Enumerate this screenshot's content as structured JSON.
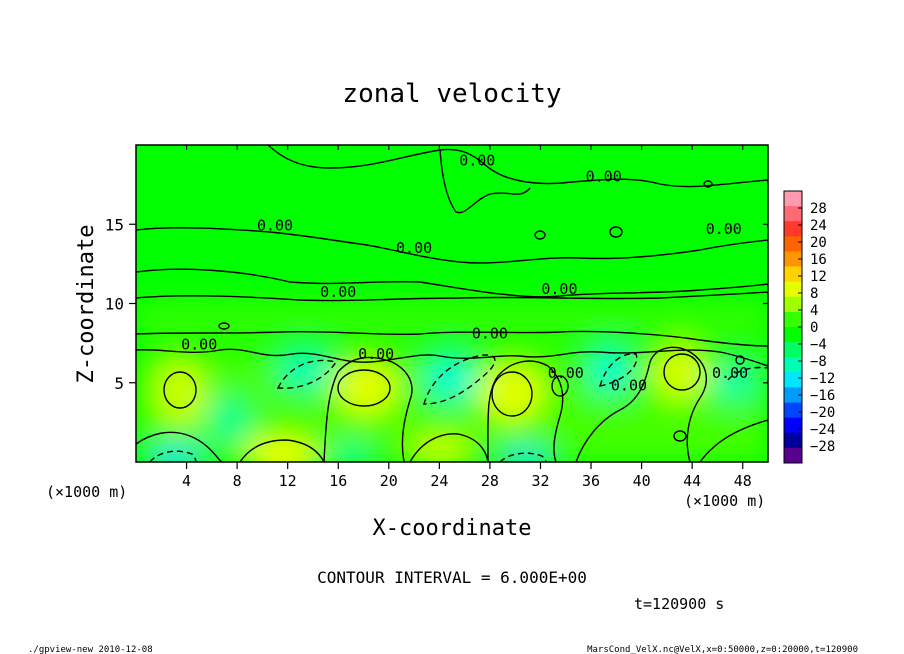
{
  "chart_data": {
    "type": "heatmap",
    "title": "zonal velocity",
    "xlabel": "X-coordinate",
    "ylabel": "Z-coordinate",
    "x_unit_label": "(×1000 m)",
    "y_unit_label": "(×1000 m)",
    "xlim": [
      0,
      50
    ],
    "ylim": [
      0,
      20
    ],
    "x_ticks": [
      4,
      8,
      12,
      16,
      20,
      24,
      28,
      32,
      36,
      40,
      44,
      48
    ],
    "x_tick_labels": [
      "4",
      "8",
      "12",
      "16",
      "20",
      "24",
      "28",
      "32",
      "36",
      "40",
      "44",
      "48"
    ],
    "y_ticks": [
      5,
      10,
      15
    ],
    "y_tick_labels": [
      "5",
      "10",
      "15"
    ],
    "contour_interval_label": "CONTOUR INTERVAL = 6.000E+00",
    "contour_interval": 6,
    "contour_labels": [
      {
        "text": "0.00",
        "x": 27.0,
        "z": 18.7
      },
      {
        "text": "0.00",
        "x": 37.0,
        "z": 17.7
      },
      {
        "text": "0.00",
        "x": 11.0,
        "z": 14.6
      },
      {
        "text": "0.00",
        "x": 22.0,
        "z": 13.2
      },
      {
        "text": "0.00",
        "x": 46.5,
        "z": 14.4
      },
      {
        "text": "0.00",
        "x": 16.0,
        "z": 10.4
      },
      {
        "text": "0.00",
        "x": 33.5,
        "z": 10.6
      },
      {
        "text": "0.00",
        "x": 5.0,
        "z": 7.1
      },
      {
        "text": "0.00",
        "x": 19.0,
        "z": 6.5
      },
      {
        "text": "0.00",
        "x": 28.0,
        "z": 7.8
      },
      {
        "text": "0.00",
        "x": 34.0,
        "z": 5.3
      },
      {
        "text": "0.00",
        "x": 39.0,
        "z": 4.5
      },
      {
        "text": "0.00",
        "x": 47.0,
        "z": 5.3
      }
    ],
    "colorbar": {
      "tick_labels": [
        "28",
        "24",
        "20",
        "16",
        "12",
        "8",
        "4",
        "0",
        "−4",
        "−8",
        "−12",
        "−16",
        "−20",
        "−24",
        "−28"
      ],
      "levels": [
        28,
        24,
        20,
        16,
        12,
        8,
        4,
        0,
        -4,
        -8,
        -12,
        -16,
        -20,
        -24,
        -28
      ],
      "min": -32,
      "max": 32,
      "colors": [
        "#ff9ab0",
        "#ff6a74",
        "#ff3a2a",
        "#ff6400",
        "#ff9600",
        "#ffd200",
        "#e6ff00",
        "#a0ff00",
        "#38ff00",
        "#00ff00",
        "#00ff64",
        "#00ffb4",
        "#00e6ff",
        "#009bff",
        "#0045ff",
        "#0000ff",
        "#00009b",
        "#5a0091"
      ]
    },
    "field_samples": [
      {
        "x": 3.5,
        "z": 4.3,
        "value": 6
      },
      {
        "x": 11.5,
        "z": 0.4,
        "value": 8
      },
      {
        "x": 18.0,
        "z": 4.7,
        "value": 8
      },
      {
        "x": 29.5,
        "z": 4.3,
        "value": 8
      },
      {
        "x": 43.0,
        "z": 5.5,
        "value": 8
      },
      {
        "x": 3.0,
        "z": 0.2,
        "value": -10
      },
      {
        "x": 14.0,
        "z": 5.0,
        "value": -6
      },
      {
        "x": 24.0,
        "z": 4.5,
        "value": -8
      },
      {
        "x": 30.5,
        "z": 0.3,
        "value": -10
      },
      {
        "x": 38.5,
        "z": 6.0,
        "value": -8
      },
      {
        "x": 46.5,
        "z": 4.5,
        "value": -6
      },
      {
        "x": 25.0,
        "z": 10.2,
        "value": 2
      },
      {
        "x": 25.0,
        "z": 16.0,
        "value": 0
      },
      {
        "x": 8.0,
        "z": 11.5,
        "value": -1
      }
    ]
  },
  "time_label": "t=120900 s",
  "footer": {
    "left": "./gpview-new  2010-12-08",
    "right": "MarsCond_VelX.nc@VelX,x=0:50000,z=0:20000,t=120900"
  }
}
